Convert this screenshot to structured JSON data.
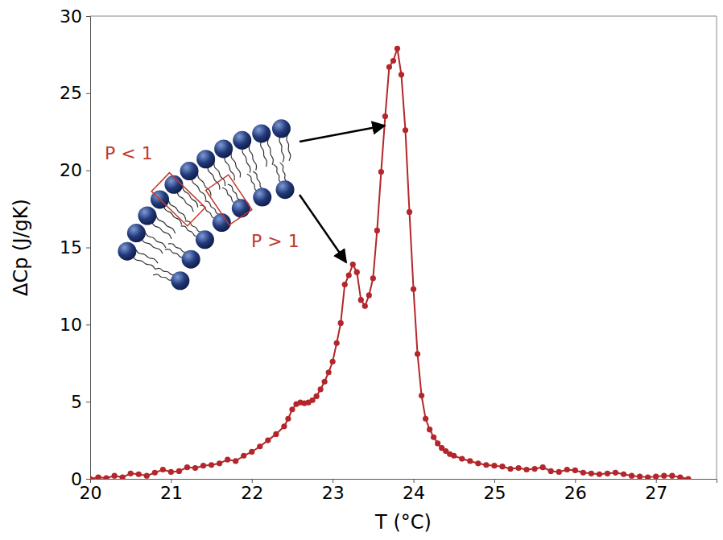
{
  "chart_data": {
    "type": "line",
    "x_label": "T (°C)",
    "y_label": "ΔCp (J/gK)",
    "xlim": [
      20,
      27.75
    ],
    "xticks": [
      20,
      21,
      22,
      23,
      24,
      25,
      26,
      27
    ],
    "ylim": [
      0,
      30
    ],
    "yticks": [
      0,
      5,
      10,
      15,
      20,
      25,
      30
    ],
    "grid": false,
    "marker": "circle",
    "line_style": "solid",
    "color": "#b3262b",
    "x": [
      20.0,
      20.1,
      20.2,
      20.3,
      20.4,
      20.5,
      20.6,
      20.7,
      20.8,
      20.9,
      21.0,
      21.1,
      21.2,
      21.3,
      21.4,
      21.5,
      21.6,
      21.7,
      21.8,
      21.9,
      22.0,
      22.1,
      22.2,
      22.3,
      22.4,
      22.45,
      22.5,
      22.55,
      22.6,
      22.65,
      22.7,
      22.75,
      22.8,
      22.85,
      22.9,
      22.95,
      23.0,
      23.05,
      23.1,
      23.15,
      23.2,
      23.25,
      23.3,
      23.35,
      23.4,
      23.45,
      23.5,
      23.55,
      23.6,
      23.65,
      23.7,
      23.75,
      23.8,
      23.85,
      23.9,
      23.95,
      24.0,
      24.05,
      24.1,
      24.15,
      24.2,
      24.25,
      24.3,
      24.35,
      24.4,
      24.45,
      24.5,
      24.6,
      24.7,
      24.8,
      24.9,
      25.0,
      25.1,
      25.2,
      25.3,
      25.4,
      25.5,
      25.6,
      25.7,
      25.8,
      25.9,
      26.0,
      26.1,
      26.2,
      26.3,
      26.4,
      26.5,
      26.6,
      26.7,
      26.8,
      26.9,
      27.0,
      27.1,
      27.2,
      27.3,
      27.4
    ],
    "values": [
      0.0,
      0.1,
      0.05,
      0.2,
      0.1,
      0.35,
      0.3,
      0.2,
      0.4,
      0.6,
      0.45,
      0.5,
      0.75,
      0.7,
      0.85,
      0.9,
      1.0,
      1.25,
      1.15,
      1.5,
      1.75,
      2.1,
      2.5,
      2.9,
      3.4,
      3.9,
      4.5,
      4.85,
      4.95,
      4.9,
      4.95,
      5.1,
      5.35,
      5.8,
      6.3,
      6.9,
      7.6,
      8.8,
      10.1,
      12.6,
      13.2,
      13.9,
      13.4,
      11.6,
      11.2,
      11.9,
      13.0,
      16.1,
      19.9,
      23.5,
      26.7,
      27.1,
      27.9,
      26.2,
      22.6,
      17.3,
      12.3,
      8.1,
      5.4,
      3.9,
      3.2,
      2.7,
      2.3,
      2.0,
      1.8,
      1.6,
      1.5,
      1.3,
      1.15,
      1.0,
      0.9,
      0.85,
      0.8,
      0.65,
      0.7,
      0.6,
      0.65,
      0.75,
      0.5,
      0.45,
      0.6,
      0.55,
      0.4,
      0.35,
      0.3,
      0.35,
      0.4,
      0.3,
      0.2,
      0.15,
      0.1,
      0.15,
      0.2,
      0.2,
      0.1,
      0.0
    ],
    "annotations": [
      "P < 1",
      "P > 1"
    ]
  }
}
